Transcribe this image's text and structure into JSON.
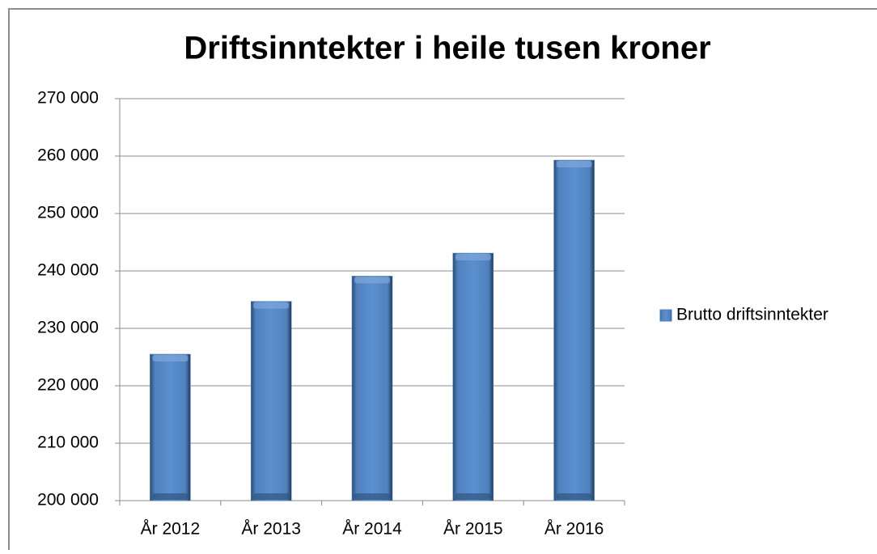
{
  "chart_data": {
    "type": "bar",
    "title": "Driftsinntekter i heile tusen kroner",
    "categories": [
      "År 2012",
      "År 2013",
      "År 2014",
      "År 2015",
      "År 2016"
    ],
    "series": [
      {
        "name": "Brutto driftsinntekter",
        "color": "#4f81bd",
        "values": [
          225500,
          234700,
          239100,
          243100,
          259300
        ]
      }
    ],
    "ylim": [
      200000,
      270000
    ],
    "yticks": [
      {
        "value": 200000,
        "label": "200 000"
      },
      {
        "value": 210000,
        "label": "210 000"
      },
      {
        "value": 220000,
        "label": "220 000"
      },
      {
        "value": 230000,
        "label": "230 000"
      },
      {
        "value": 240000,
        "label": "240 000"
      },
      {
        "value": 250000,
        "label": "250 000"
      },
      {
        "value": 260000,
        "label": "260 000"
      },
      {
        "value": 270000,
        "label": "270 000"
      }
    ],
    "grid": true,
    "legend": "right"
  }
}
